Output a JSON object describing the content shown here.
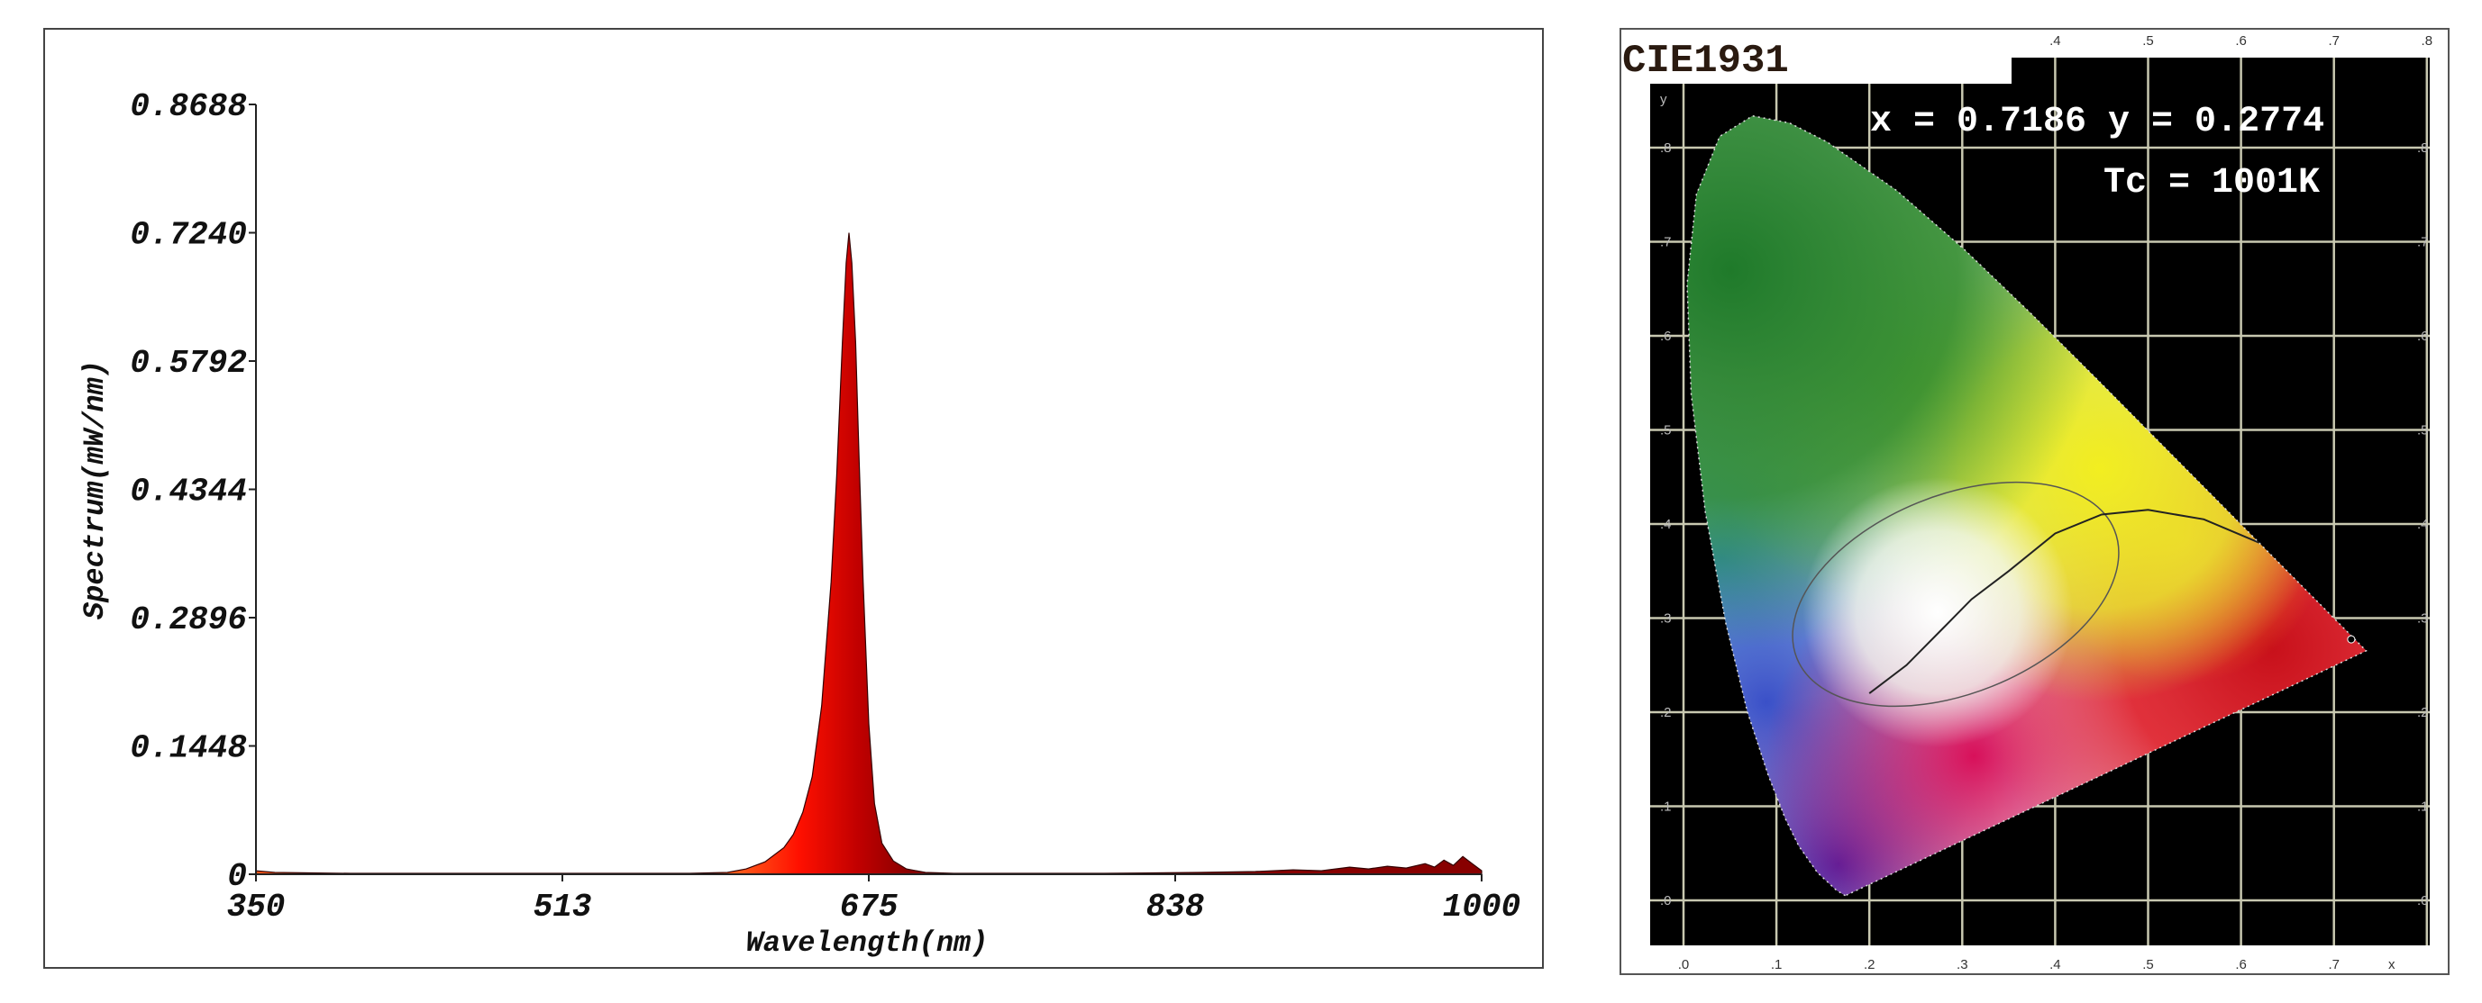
{
  "chart_data": [
    {
      "type": "area",
      "title": "",
      "xlabel": "Wavelength(nm)",
      "ylabel": "Spectrum(mW/nm)",
      "xlim": [
        350,
        1000
      ],
      "ylim": [
        0,
        0.8688
      ],
      "x_ticks": [
        "350",
        "513",
        "675",
        "838",
        "1000"
      ],
      "x_tick_values": [
        350,
        512.5,
        675,
        837.5,
        1000
      ],
      "y_ticks": [
        "0",
        "0.1448",
        "0.2896",
        "0.4344",
        "0.5792",
        "0.7240",
        "0.8688"
      ],
      "y_tick_values": [
        0,
        0.1448,
        0.2896,
        0.4344,
        0.5792,
        0.724,
        0.8688
      ],
      "grid": false,
      "fill_color_left": "#ff1a00",
      "fill_color_right": "#9a0000",
      "series": [
        {
          "name": "spectrum",
          "x": [
            350,
            360,
            400,
            450,
            500,
            550,
            580,
            600,
            610,
            620,
            630,
            635,
            640,
            645,
            650,
            655,
            658,
            661,
            663,
            664.5,
            666,
            668,
            670,
            672,
            675,
            678,
            682,
            688,
            695,
            705,
            720,
            750,
            800,
            850,
            880,
            900,
            915,
            930,
            940,
            950,
            960,
            970,
            975,
            980,
            985,
            990,
            995,
            1000
          ],
          "y": [
            0.004,
            0.002,
            0.001,
            0.001,
            0.001,
            0.001,
            0.001,
            0.002,
            0.006,
            0.014,
            0.03,
            0.045,
            0.07,
            0.11,
            0.19,
            0.33,
            0.45,
            0.6,
            0.69,
            0.724,
            0.69,
            0.6,
            0.46,
            0.33,
            0.17,
            0.08,
            0.035,
            0.015,
            0.006,
            0.002,
            0.001,
            0.001,
            0.001,
            0.002,
            0.003,
            0.005,
            0.004,
            0.008,
            0.006,
            0.009,
            0.007,
            0.012,
            0.008,
            0.016,
            0.01,
            0.02,
            0.012,
            0.004
          ]
        }
      ]
    },
    {
      "type": "scatter",
      "title": "CIE1931",
      "readout_xy": "x = 0.7186 y = 0.2774",
      "readout_tc": "Tc = 1001K",
      "point": {
        "x": 0.7186,
        "y": 0.2774
      },
      "tc_kelvin": 1001,
      "xlim": [
        0,
        0.8
      ],
      "ylim": [
        0,
        0.8
      ],
      "x_ticks": [
        ".0",
        ".1",
        ".2",
        ".3",
        ".4",
        ".5",
        ".6",
        ".7"
      ],
      "x_tick_values": [
        0,
        0.1,
        0.2,
        0.3,
        0.4,
        0.5,
        0.6,
        0.7
      ],
      "top_ticks": [
        ".4",
        ".5",
        ".6",
        ".7",
        ".8"
      ],
      "top_tick_values": [
        0.4,
        0.5,
        0.6,
        0.7,
        0.8
      ],
      "y_ticks": [
        ".0",
        ".1",
        ".2",
        ".3",
        ".4",
        ".5",
        ".6",
        ".7",
        ".8"
      ],
      "y_tick_values": [
        0,
        0.1,
        0.2,
        0.3,
        0.4,
        0.5,
        0.6,
        0.7,
        0.8
      ],
      "x_axis_letter": "x",
      "y_axis_letter": "y",
      "grid": true,
      "background": "#000000",
      "grid_color": "#c8c8b0"
    }
  ]
}
